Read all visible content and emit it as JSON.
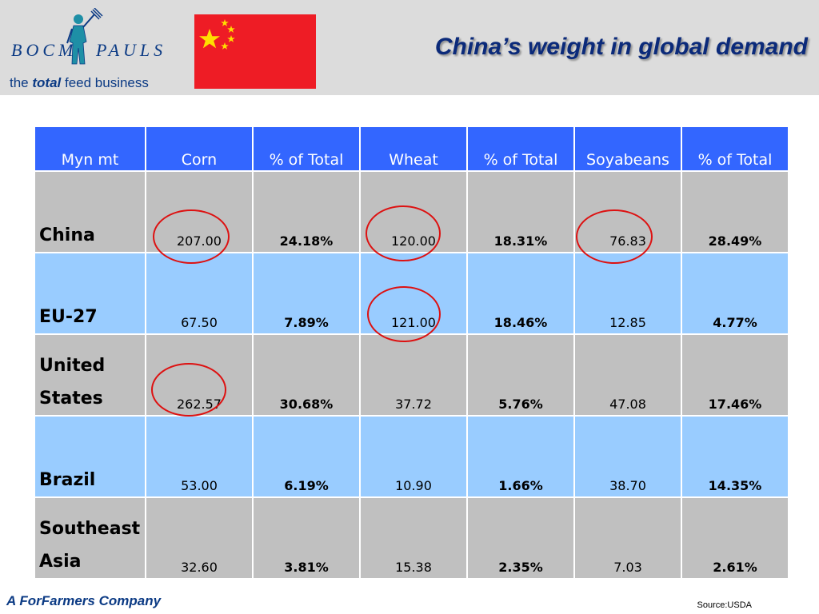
{
  "header": {
    "logo_left": "BOCM",
    "logo_right": "PAULS",
    "tagline_pre": "the ",
    "tagline_em": "total",
    "tagline_post": " feed business",
    "title": "China’s weight in global demand",
    "flag_colors": {
      "field": "#ee1c25",
      "stars": "#ffde00"
    }
  },
  "table": {
    "headers": [
      "Myn mt",
      "Corn",
      "% of Total",
      "Wheat",
      "% of Total",
      "Soyabeans",
      "% of Total"
    ],
    "rows": [
      {
        "label": "China",
        "values": [
          "207.00",
          "24.18%",
          "120.00",
          "18.31%",
          "76.83",
          "28.49%"
        ]
      },
      {
        "label": "EU-27",
        "values": [
          "67.50",
          "7.89%",
          "121.00",
          "18.46%",
          "12.85",
          "4.77%"
        ]
      },
      {
        "label": "United States",
        "values": [
          "262.57",
          "30.68%",
          "37.72",
          "5.76%",
          "47.08",
          "17.46%"
        ]
      },
      {
        "label": "Brazil",
        "values": [
          "53.00",
          "6.19%",
          "10.90",
          "1.66%",
          "38.70",
          "14.35%"
        ]
      },
      {
        "label": "Southeast Asia",
        "values": [
          "32.60",
          "3.81%",
          "15.38",
          "2.35%",
          "7.03",
          "2.61%"
        ]
      }
    ],
    "colors": {
      "header": "#3366ff",
      "gray_row": "#c0c0c0",
      "blue_row": "#99ccff",
      "highlight_circle": "#dd1111"
    }
  },
  "footer": {
    "company": "A ForFarmers Company",
    "source": "Source:USDA"
  }
}
